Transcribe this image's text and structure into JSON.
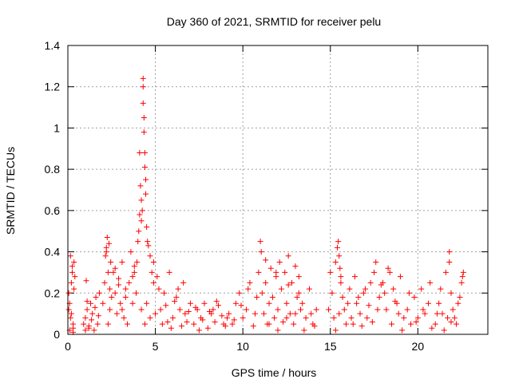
{
  "chart_data": {
    "type": "scatter",
    "title": "Day 360 of 2021, SRMTID for receiver pelu",
    "xlabel": "GPS time / hours",
    "ylabel": "SRMTID / TECUs",
    "xlim": [
      0,
      24
    ],
    "ylim": [
      0,
      1.4
    ],
    "xticks": [
      0,
      5,
      10,
      15,
      20
    ],
    "yticks": [
      0,
      0.2,
      0.4,
      0.6,
      0.8,
      1,
      1.2,
      1.4
    ],
    "ytick_labels": [
      "0",
      "0.2",
      "0.4",
      "0.6",
      "0.8",
      "1",
      "1.2",
      "1.4"
    ],
    "grid": true,
    "marker": "+",
    "color": "#ff0000",
    "series": [
      {
        "name": "SRMTID",
        "x": [
          0.05,
          0.1,
          0.15,
          0.2,
          0.25,
          0.3,
          0.35,
          0.1,
          0.2,
          0.3,
          0.05,
          0.15,
          0.25,
          0.3,
          0.35,
          0.4,
          0.9,
          1.0,
          1.05,
          1.1,
          1.2,
          1.3,
          1.35,
          1.4,
          1.5,
          1.55,
          1.6,
          1.7,
          1.75,
          1.8,
          1.0,
          1.1,
          1.2,
          2.0,
          2.1,
          2.15,
          2.2,
          2.25,
          2.3,
          2.35,
          2.4,
          2.45,
          2.5,
          2.2,
          2.3,
          2.4,
          2.6,
          2.7,
          2.8,
          2.9,
          3.0,
          3.1,
          3.2,
          3.3,
          3.4,
          2.7,
          2.9,
          3.1,
          3.3,
          3.5,
          3.6,
          3.7,
          3.8,
          3.9,
          3.7,
          3.8,
          3.95,
          4.0,
          4.05,
          4.1,
          4.1,
          4.15,
          4.2,
          4.2,
          4.25,
          4.3,
          4.3,
          4.3,
          4.35,
          4.35,
          4.4,
          4.4,
          4.45,
          4.45,
          4.5,
          4.55,
          4.6,
          4.7,
          4.8,
          4.9,
          4.5,
          4.7,
          4.9,
          4.2,
          4.4,
          5.0,
          5.2,
          5.4,
          5.6,
          5.8,
          6.0,
          6.2,
          6.4,
          6.6,
          6.8,
          7.0,
          5.5,
          5.9,
          6.3,
          6.7,
          5.1,
          5.3,
          5.7,
          6.1,
          6.5,
          6.9,
          7.2,
          7.4,
          7.6,
          7.8,
          8.0,
          8.2,
          8.4,
          8.6,
          8.8,
          9.0,
          7.3,
          7.7,
          8.1,
          8.5,
          8.9,
          7.5,
          8.3,
          9.1,
          9.2,
          9.4,
          9.6,
          9.8,
          10.0,
          10.2,
          10.4,
          10.6,
          10.8,
          9.5,
          9.9,
          10.3,
          10.7,
          10.9,
          11.0,
          11.05,
          11.1,
          11.2,
          11.3,
          11.4,
          11.5,
          11.6,
          11.7,
          11.8,
          11.9,
          12.0,
          12.1,
          12.2,
          12.3,
          12.4,
          12.5,
          12.6,
          12.7,
          12.8,
          12.9,
          13.0,
          13.1,
          13.2,
          13.3,
          11.5,
          12.0,
          12.5,
          13.0,
          11.3,
          11.9,
          12.6,
          13.2,
          13.4,
          13.6,
          13.8,
          14.0,
          14.2,
          13.5,
          13.9,
          14.1,
          14.9,
          15.0,
          15.1,
          15.2,
          15.3,
          15.4,
          15.45,
          15.5,
          15.55,
          15.6,
          15.7,
          15.8,
          15.9,
          16.0,
          15.5,
          15.6,
          15.3,
          16.1,
          16.2,
          16.3,
          16.5,
          16.7,
          16.9,
          17.1,
          17.3,
          17.5,
          17.7,
          16.6,
          17.0,
          17.4,
          16.4,
          16.8,
          17.2,
          17.6,
          17.8,
          18.0,
          18.2,
          18.4,
          18.6,
          18.8,
          19.0,
          19.2,
          18.1,
          18.5,
          18.9,
          17.9,
          18.3,
          18.7,
          19.1,
          19.4,
          19.6,
          19.8,
          20.0,
          20.2,
          20.4,
          20.6,
          20.8,
          19.5,
          19.9,
          20.3,
          20.7,
          21.0,
          21.2,
          21.4,
          21.6,
          21.7,
          21.8,
          21.9,
          22.0,
          22.2,
          22.4,
          22.5,
          22.6,
          21.3,
          21.5,
          21.8,
          22.1,
          22.3,
          22.55,
          21.1,
          21.9
        ],
        "y": [
          0.2,
          0.02,
          0.38,
          0.1,
          0.3,
          0.05,
          0.35,
          0.15,
          0.25,
          0.01,
          0.12,
          0.08,
          0.33,
          0.03,
          0.22,
          0.28,
          0.05,
          0.02,
          0.26,
          0.12,
          0.04,
          0.15,
          0.07,
          0.1,
          0.02,
          0.13,
          0.18,
          0.05,
          0.09,
          0.2,
          0.08,
          0.16,
          0.03,
          0.15,
          0.25,
          0.38,
          0.42,
          0.47,
          0.3,
          0.44,
          0.22,
          0.35,
          0.18,
          0.4,
          0.05,
          0.12,
          0.3,
          0.2,
          0.1,
          0.24,
          0.15,
          0.35,
          0.08,
          0.18,
          0.05,
          0.32,
          0.27,
          0.12,
          0.22,
          0.25,
          0.4,
          0.28,
          0.33,
          0.2,
          0.15,
          0.3,
          0.35,
          0.45,
          0.5,
          0.88,
          0.58,
          0.72,
          0.55,
          0.65,
          0.6,
          1.2,
          1.24,
          1.12,
          1.05,
          0.98,
          0.88,
          0.81,
          0.75,
          0.68,
          0.52,
          0.45,
          0.43,
          0.38,
          0.3,
          0.35,
          0.15,
          0.08,
          0.25,
          0.12,
          0.05,
          0.1,
          0.22,
          0.05,
          0.14,
          0.3,
          0.08,
          0.18,
          0.12,
          0.25,
          0.06,
          0.15,
          0.2,
          0.03,
          0.22,
          0.1,
          0.28,
          0.12,
          0.06,
          0.16,
          0.04,
          0.11,
          0.05,
          0.12,
          0.08,
          0.15,
          0.03,
          0.1,
          0.06,
          0.14,
          0.09,
          0.04,
          0.13,
          0.07,
          0.11,
          0.16,
          0.05,
          0.02,
          0.12,
          0.08,
          0.1,
          0.05,
          0.15,
          0.2,
          0.08,
          0.12,
          0.25,
          0.04,
          0.18,
          0.07,
          0.14,
          0.22,
          0.1,
          0.3,
          0.45,
          0.4,
          0.2,
          0.1,
          0.25,
          0.05,
          0.15,
          0.32,
          0.18,
          0.08,
          0.28,
          0.12,
          0.35,
          0.22,
          0.06,
          0.3,
          0.15,
          0.38,
          0.1,
          0.25,
          0.05,
          0.33,
          0.18,
          0.28,
          0.12,
          0.05,
          0.02,
          0.08,
          0.1,
          0.36,
          0.3,
          0.24,
          0.2,
          0.15,
          0.08,
          0.22,
          0.05,
          0.12,
          0.02,
          0.1,
          0.04,
          0.12,
          0.3,
          0.2,
          0.08,
          0.35,
          0.42,
          0.45,
          0.38,
          0.32,
          0.25,
          0.18,
          0.12,
          0.05,
          0.15,
          0.1,
          0.28,
          0.02,
          0.22,
          0.08,
          0.05,
          0.15,
          0.1,
          0.2,
          0.08,
          0.25,
          0.3,
          0.12,
          0.18,
          0.22,
          0.06,
          0.28,
          0.04,
          0.14,
          0.35,
          0.18,
          0.25,
          0.12,
          0.3,
          0.22,
          0.15,
          0.28,
          0.08,
          0.2,
          0.05,
          0.1,
          0.24,
          0.32,
          0.16,
          0.02,
          0.12,
          0.05,
          0.18,
          0.08,
          0.22,
          0.1,
          0.15,
          0.03,
          0.2,
          0.06,
          0.12,
          0.25,
          0.05,
          0.15,
          0.1,
          0.3,
          0.08,
          0.4,
          0.2,
          0.12,
          0.05,
          0.18,
          0.25,
          0.3,
          0.22,
          0.02,
          0.35,
          0.08,
          0.15,
          0.28,
          0.1,
          0.06
        ]
      }
    ]
  }
}
